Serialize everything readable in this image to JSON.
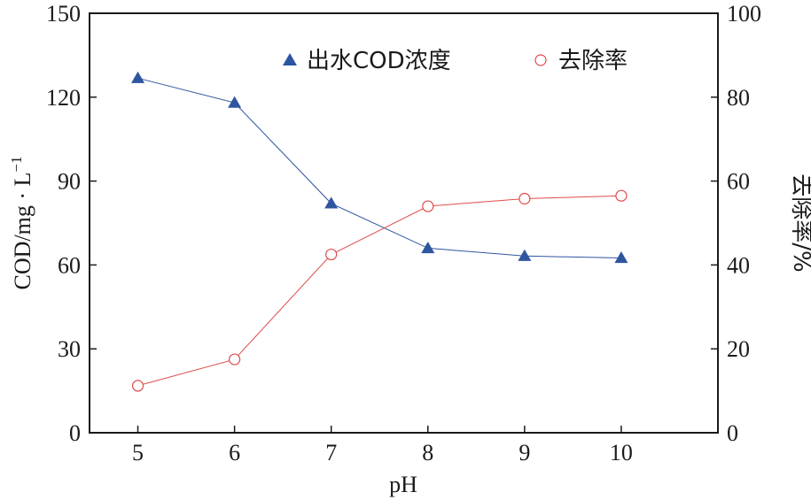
{
  "chart_data": {
    "type": "line",
    "x": [
      5,
      6,
      7,
      8,
      9,
      10
    ],
    "xlabel": "pH",
    "xlim": [
      4.5,
      11.0
    ],
    "xticks": [
      "5",
      "6",
      "7",
      "8",
      "9",
      "10"
    ],
    "ylabel_left": "COD/mg · L",
    "ylabel_left_sup": "−1",
    "ylim_left": [
      0,
      150
    ],
    "yticks_left": [
      "0",
      "30",
      "60",
      "90",
      "120",
      "150"
    ],
    "ylabel_right": "去除率/%",
    "ylim_right": [
      0,
      100
    ],
    "yticks_right": [
      "0",
      "20",
      "40",
      "60",
      "80",
      "100"
    ],
    "grid": false,
    "legend_position": "top",
    "series": [
      {
        "name": "出水COD浓度",
        "axis": "left",
        "marker": "filled-triangle",
        "color": "#2e55a0",
        "values": [
          126.8,
          118.0,
          82.0,
          66.0,
          63.2,
          62.5
        ]
      },
      {
        "name": "去除率",
        "axis": "right",
        "marker": "open-circle",
        "color": "#e04a4a",
        "values": [
          11.2,
          17.5,
          42.5,
          54.0,
          55.8,
          56.5
        ]
      }
    ]
  }
}
